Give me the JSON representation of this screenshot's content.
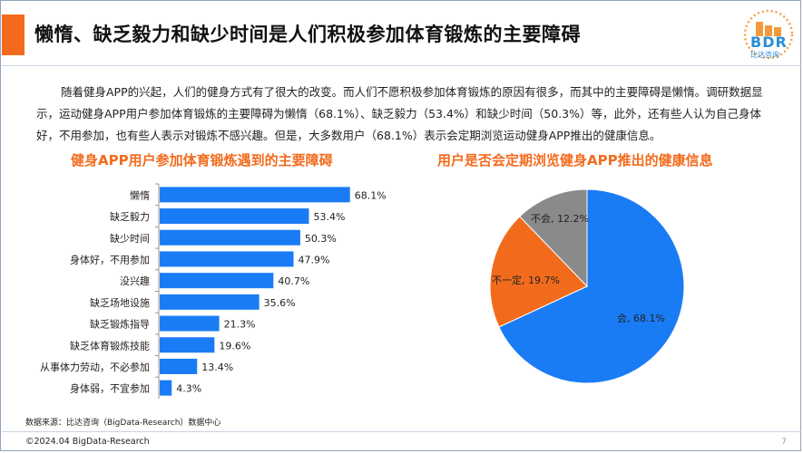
{
  "header": {
    "title": "懒惰、缺乏毅力和缺少时间是人们积极参加体育锻炼的主要障碍",
    "logo_text": "BDR",
    "logo_subtext": "比达咨询"
  },
  "intro": "随着健身APP的兴起，人们的健身方式有了很大的改变。而人们不愿积极参加体育锻炼的原因有很多，而其中的主要障碍是懒惰。调研数据显示，运动健身APP用户参加体育锻炼的主要障碍为懒惰（68.1%）、缺乏毅力（53.4%）和缺少时间（50.3%）等，此外，还有些人认为自己身体好，不用参加，也有些人表示对锻炼不感兴趣。但是，大多数用户（68.1%）表示会定期浏览运动健身APP推出的健康信息。",
  "colors": {
    "accent": "#f26b1d",
    "bar": "#1a7cf5",
    "pie": [
      "#1a7cf5",
      "#f26b1d",
      "#8a8a8a"
    ]
  },
  "chart_data": [
    {
      "type": "bar",
      "orientation": "horizontal",
      "title": "健身APP用户参加体育锻炼遇到的主要障碍",
      "categories": [
        "懒惰",
        "缺乏毅力",
        "缺少时间",
        "身体好，不用参加",
        "没兴趣",
        "缺乏场地设施",
        "缺乏锻炼指导",
        "缺乏体育锻炼技能",
        "从事体力劳动，不必参加",
        "身体弱，不宜参加"
      ],
      "values": [
        68.1,
        53.4,
        50.3,
        47.9,
        40.7,
        35.6,
        21.3,
        19.6,
        13.4,
        4.3
      ],
      "data_labels": [
        "68.1%",
        "53.4%",
        "50.3%",
        "47.9%",
        "40.7%",
        "35.6%",
        "21.3%",
        "19.6%",
        "13.4%",
        "4.3%"
      ],
      "unit": "%",
      "grid": false
    },
    {
      "type": "pie",
      "title": "用户是否会定期浏览健身APP推出的健康信息",
      "categories": [
        "会",
        "不一定",
        "不会"
      ],
      "values": [
        68.1,
        19.7,
        12.2
      ],
      "data_labels": [
        "会, 68.1%",
        "不一定, 19.7%",
        "不会, 12.2%"
      ]
    }
  ],
  "footer": {
    "source": "数据来源：比达咨询（BigData-Research）数据中心",
    "copyright": "©2024.04 BigData-Research",
    "page": "7"
  }
}
